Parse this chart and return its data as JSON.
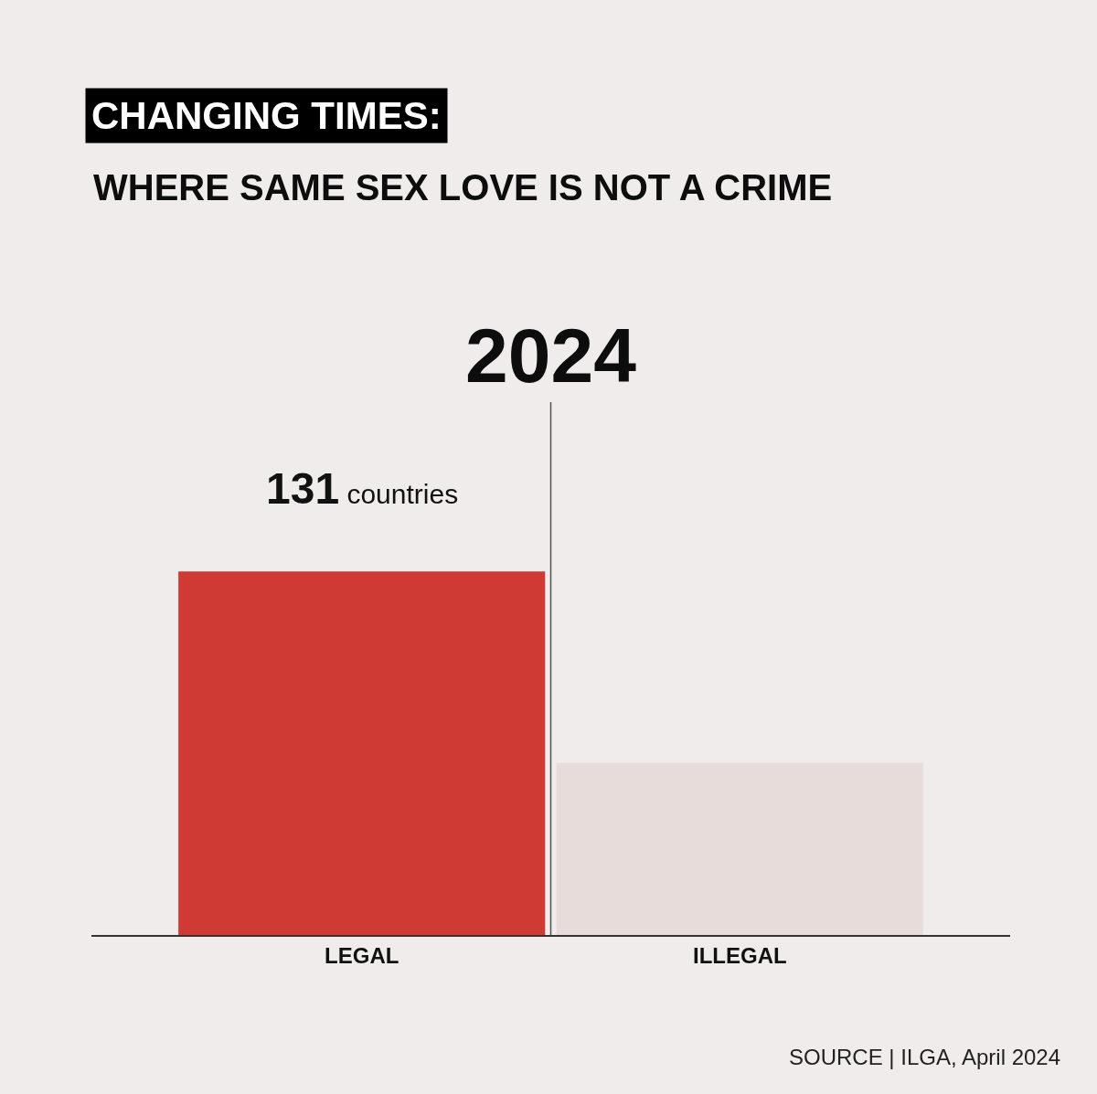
{
  "chart_data": {
    "type": "bar",
    "title": "CHANGING TIMES:",
    "subtitle": "WHERE SAME SEX LOVE IS NOT A CRIME",
    "categories": [
      "LEGAL",
      "ILLEGAL"
    ],
    "values": [
      131,
      62
    ],
    "colors": [
      "#d03a34",
      "#e7dcd9"
    ],
    "value_labels": [
      "131 countries",
      null
    ],
    "ylim": [
      0,
      192
    ],
    "tick_labels": "x",
    "annotations": [
      "2024",
      "SOURCE | ILGA, April 2024"
    ]
  }
}
